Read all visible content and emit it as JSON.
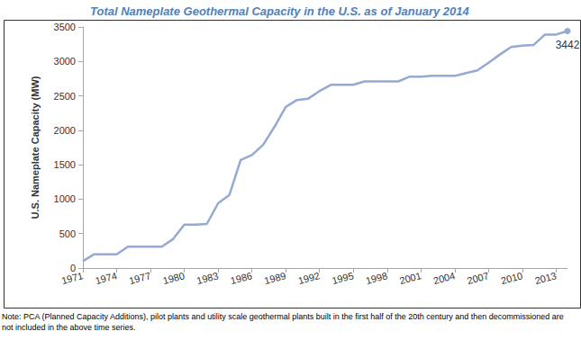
{
  "chart_data": {
    "type": "line",
    "title": "Total Nameplate Geothermal Capacity in the U.S. as of January 2014",
    "y_label": "U.S. Nameplate Capacity (MW)",
    "note": "Note: PCA (Planned Capacity Additions), pilot plants and utility scale geothermal plants built in the first half of the 20th century and then decommissioned are not included in the above time series.",
    "x": [
      1971,
      1972,
      1973,
      1974,
      1975,
      1976,
      1977,
      1978,
      1979,
      1980,
      1981,
      1982,
      1983,
      1984,
      1985,
      1986,
      1987,
      1988,
      1989,
      1990,
      1991,
      1992,
      1993,
      1994,
      1995,
      1996,
      1997,
      1998,
      1999,
      2000,
      2001,
      2002,
      2003,
      2004,
      2005,
      2006,
      2007,
      2008,
      2009,
      2010,
      2011,
      2012,
      2013,
      2014
    ],
    "values": [
      100,
      200,
      200,
      200,
      310,
      310,
      310,
      310,
      420,
      630,
      630,
      640,
      940,
      1060,
      1570,
      1640,
      1790,
      2050,
      2340,
      2440,
      2460,
      2570,
      2660,
      2660,
      2660,
      2710,
      2710,
      2710,
      2710,
      2780,
      2780,
      2790,
      2790,
      2790,
      2830,
      2870,
      2980,
      3100,
      3210,
      3230,
      3240,
      3390,
      3390,
      3442
    ],
    "color": "#95a9d2",
    "xlim": [
      1971,
      2014
    ],
    "xticks": [
      1971,
      1974,
      1977,
      1980,
      1983,
      1986,
      1989,
      1992,
      1995,
      1998,
      2001,
      2004,
      2007,
      2010,
      2013
    ],
    "ylim": [
      0,
      3500
    ],
    "yticks": [
      0,
      500,
      1000,
      1500,
      2000,
      2500,
      3000,
      3500
    ],
    "grid": false,
    "annotations": [
      {
        "x": 2014,
        "y": 3442,
        "text": "3442"
      }
    ]
  }
}
